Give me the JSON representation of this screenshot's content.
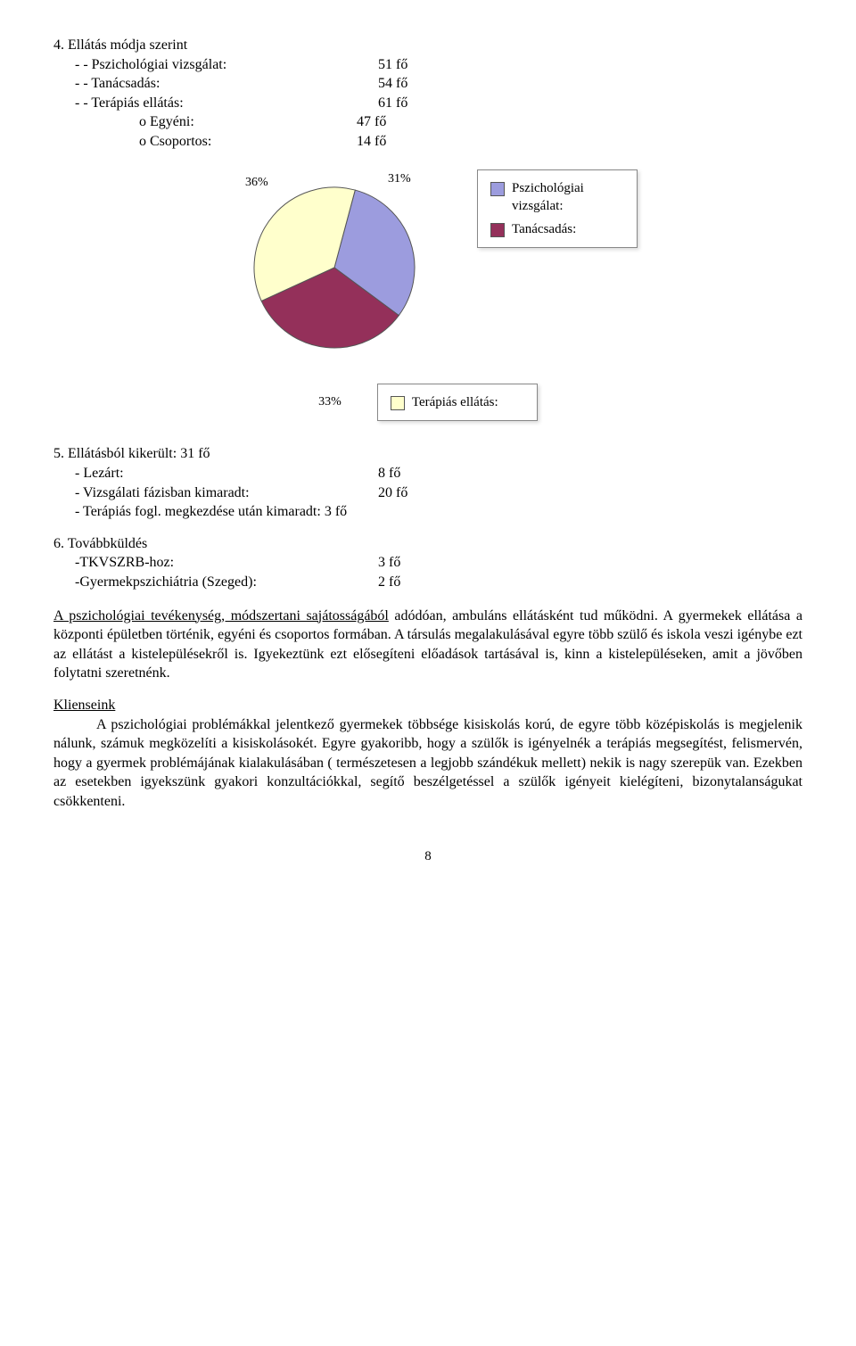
{
  "sec4": {
    "title": "4. Ellátás módja szerint",
    "rows": [
      {
        "l": "- - Pszichológiai vizsgálat:",
        "v": "51 fő"
      },
      {
        "l": "- - Tanácsadás:",
        "v": "54 fő"
      },
      {
        "l": "- - Terápiás ellátás:",
        "v": "61 fő"
      }
    ],
    "subrows": [
      {
        "l": "o   Egyéni:",
        "v": "47 fő"
      },
      {
        "l": "o   Csoportos:",
        "v": "14 fő"
      }
    ]
  },
  "chart": {
    "type": "pie",
    "values": [
      31,
      33,
      36
    ],
    "labels": [
      "31%",
      "33%",
      "36%"
    ],
    "colors": [
      "#9c9cde",
      "#94305a",
      "#ffffcc"
    ],
    "stroke": "#555555",
    "stroke_width": 1,
    "legend_upper": [
      {
        "label": "Pszichológiai vizsgálat:",
        "color": "#9c9cde"
      },
      {
        "label": "Tanácsadás:",
        "color": "#94305a"
      }
    ],
    "legend_lower_percent": "33%",
    "legend_lower": [
      {
        "label": "Terápiás ellátás:",
        "color": "#ffffcc"
      }
    ]
  },
  "sec5": {
    "title": "5. Ellátásból kikerült: 31 fő",
    "rows": [
      {
        "l": "- Lezárt:",
        "v": "8 fő"
      },
      {
        "l": "- Vizsgálati fázisban kimaradt:",
        "v": "20 fő"
      },
      {
        "l": "- Terápiás fogl. megkezdése után kimaradt: 3 fő",
        "v": ""
      }
    ]
  },
  "sec6": {
    "title": "6. Továbbküldés",
    "rows": [
      {
        "l": "-TKVSZRB-hoz:",
        "v": "3 fő"
      },
      {
        "l": "-Gyermekpszichiátria (Szeged):",
        "v": "2 fő"
      }
    ]
  },
  "para1_lead": "A pszichológiai tevékenység, módszertani sajátosságából",
  "para1_rest": " adódóan, ambuláns ellátásként tud működni. A gyermekek ellátása a központi épületben történik, egyéni és csoportos formában. A társulás megalakulásával egyre több szülő és iskola veszi igénybe ezt az ellátást a kistelepülésekről is. Igyekeztünk ezt elősegíteni előadások tartásával is, kinn a kistelepüléseken, amit a jövőben folytatni szeretnénk.",
  "para2_lead": "Klienseink",
  "para2_rest": "A pszichológiai problémákkal jelentkező gyermekek többsége kisiskolás korú, de egyre több középiskolás is megjelenik nálunk, számuk megközelíti a kisiskolásokét. Egyre gyakoribb, hogy a szülők is igényelnék a terápiás megsegítést, felismervén, hogy a gyermek problémájának kialakulásában ( természetesen a legjobb szándékuk mellett) nekik is nagy szerepük van. Ezekben az esetekben igyekszünk gyakori konzultációkkal, segítő beszélgetéssel a szülők igényeit kielégíteni, bizonytalanságukat csökkenteni.",
  "page": "8"
}
